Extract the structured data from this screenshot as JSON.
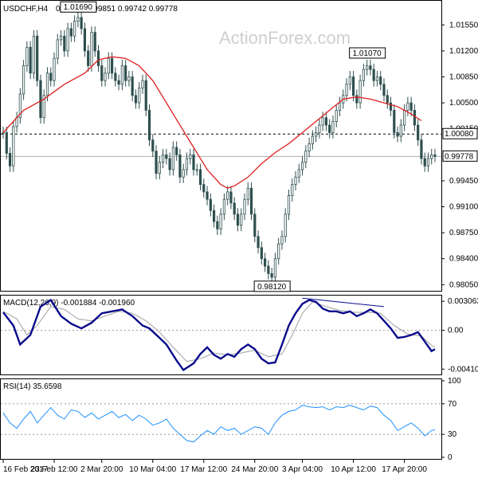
{
  "header": {
    "symbol": "USDCHF,H4",
    "ohlc": "0.99786 0.99851 0.99742 0.99778"
  },
  "watermark": "ActionForex.com",
  "colors": {
    "candles": "#2f4f4f",
    "ma": "#e02020",
    "macd_line": "#0a0a8c",
    "signal_line": "#a0a0a0",
    "rsi_line": "#1e90ff",
    "level": "#000000",
    "divergence": "#0a0a8c"
  },
  "chart_data": [
    {
      "type": "candlestick",
      "name": "price",
      "y_ticks": [
        "1.01550",
        "1.01200",
        "1.00850",
        "1.00500",
        "1.00150",
        "0.99450",
        "0.99100",
        "0.98750",
        "0.98400",
        "0.98050"
      ],
      "ylim": [
        0.98,
        1.018
      ],
      "horizontal_level": {
        "value": 1.0008,
        "label": "1.00080"
      },
      "last_price": {
        "value": 0.99778,
        "label": "0.99778"
      },
      "annotations": [
        {
          "label": "1.01690",
          "value": 1.0169,
          "x": 22
        },
        {
          "label": "1.01070",
          "value": 1.0107,
          "x": 107
        },
        {
          "label": "0.98120",
          "value": 0.9812,
          "x": 79
        }
      ],
      "moving_average_path": [
        [
          0,
          1.001
        ],
        [
          6,
          1.004
        ],
        [
          12,
          1.0055
        ],
        [
          18,
          1.0075
        ],
        [
          24,
          1.009
        ],
        [
          28,
          1.0108
        ],
        [
          32,
          1.0112
        ],
        [
          36,
          1.011
        ],
        [
          40,
          1.01
        ],
        [
          44,
          1.008
        ],
        [
          48,
          1.005
        ],
        [
          52,
          1.002
        ],
        [
          56,
          0.999
        ],
        [
          60,
          0.996
        ],
        [
          62,
          0.995
        ],
        [
          64,
          0.994
        ],
        [
          66,
          0.9935
        ],
        [
          68,
          0.9938
        ],
        [
          72,
          0.995
        ],
        [
          76,
          0.9968
        ],
        [
          80,
          0.9983
        ],
        [
          84,
          0.9995
        ],
        [
          88,
          1.001
        ],
        [
          92,
          1.0025
        ],
        [
          96,
          1.004
        ],
        [
          100,
          1.0055
        ],
        [
          104,
          1.0058
        ],
        [
          108,
          1.0055
        ],
        [
          112,
          1.005
        ],
        [
          116,
          1.0045
        ],
        [
          120,
          1.0035
        ],
        [
          123,
          1.0026
        ]
      ],
      "close_path": [
        [
          0,
          1.001
        ],
        [
          1,
          0.9982
        ],
        [
          2,
          0.9965
        ],
        [
          3,
          1.0018
        ],
        [
          4,
          1.003
        ],
        [
          5,
          1.0062
        ],
        [
          6,
          1.01
        ],
        [
          7,
          1.0125
        ],
        [
          8,
          1.009
        ],
        [
          9,
          1.014
        ],
        [
          10,
          1.008
        ],
        [
          11,
          1.003
        ],
        [
          12,
          1.006
        ],
        [
          13,
          1.009
        ],
        [
          14,
          1.008
        ],
        [
          15,
          1.011
        ],
        [
          16,
          1.0135
        ],
        [
          17,
          1.014
        ],
        [
          18,
          1.012
        ],
        [
          19,
          1.015
        ],
        [
          20,
          1.014
        ],
        [
          21,
          1.016
        ],
        [
          22,
          1.0165
        ],
        [
          23,
          1.015
        ],
        [
          24,
          1.012
        ],
        [
          25,
          1.01
        ],
        [
          26,
          1.0145
        ],
        [
          27,
          1.012
        ],
        [
          28,
          1.01
        ],
        [
          29,
          1.008
        ],
        [
          30,
          1.009
        ],
        [
          31,
          1.011
        ],
        [
          32,
          1.009
        ],
        [
          33,
          1.008
        ],
        [
          34,
          1.0075
        ],
        [
          35,
          1.01
        ],
        [
          36,
          1.008
        ],
        [
          37,
          1.0085
        ],
        [
          38,
          1.006
        ],
        [
          39,
          1.005
        ],
        [
          40,
          1.007
        ],
        [
          41,
          1.008
        ],
        [
          42,
          1.004
        ],
        [
          43,
          1.0
        ],
        [
          44,
          0.9985
        ],
        [
          45,
          0.9955
        ],
        [
          46,
          0.997
        ],
        [
          47,
          0.998
        ],
        [
          48,
          0.9975
        ],
        [
          49,
          0.996
        ],
        [
          50,
          0.999
        ],
        [
          51,
          0.998
        ],
        [
          52,
          0.995
        ],
        [
          53,
          0.996
        ],
        [
          54,
          0.9975
        ],
        [
          55,
          0.998
        ],
        [
          56,
          0.996
        ],
        [
          57,
          0.996
        ],
        [
          58,
          0.994
        ],
        [
          59,
          0.993
        ],
        [
          60,
          0.992
        ],
        [
          61,
          0.9905
        ],
        [
          62,
          0.989
        ],
        [
          63,
          0.988
        ],
        [
          64,
          0.99
        ],
        [
          65,
          0.992
        ],
        [
          66,
          0.993
        ],
        [
          67,
          0.9915
        ],
        [
          68,
          0.99
        ],
        [
          69,
          0.9885
        ],
        [
          70,
          0.99
        ],
        [
          71,
          0.992
        ],
        [
          72,
          0.9935
        ],
        [
          73,
          0.99
        ],
        [
          74,
          0.987
        ],
        [
          75,
          0.9855
        ],
        [
          76,
          0.984
        ],
        [
          77,
          0.983
        ],
        [
          78,
          0.982
        ],
        [
          79,
          0.9815
        ],
        [
          80,
          0.984
        ],
        [
          81,
          0.986
        ],
        [
          82,
          0.987
        ],
        [
          83,
          0.99
        ],
        [
          84,
          0.9925
        ],
        [
          85,
          0.994
        ],
        [
          86,
          0.995
        ],
        [
          87,
          0.996
        ],
        [
          88,
          0.997
        ],
        [
          89,
          0.9985
        ],
        [
          90,
          0.9995
        ],
        [
          91,
          1.0005
        ],
        [
          92,
          1.001
        ],
        [
          93,
          1.002
        ],
        [
          94,
          1.003
        ],
        [
          95,
          1.002
        ],
        [
          96,
          1.001
        ],
        [
          97,
          1.0025
        ],
        [
          98,
          1.004
        ],
        [
          99,
          1.005
        ],
        [
          100,
          1.006
        ],
        [
          101,
          1.0075
        ],
        [
          102,
          1.0085
        ],
        [
          103,
          1.006
        ],
        [
          104,
          1.005
        ],
        [
          105,
          1.008
        ],
        [
          106,
          1.0095
        ],
        [
          107,
          1.01
        ],
        [
          108,
          1.0095
        ],
        [
          109,
          1.008
        ],
        [
          110,
          1.0085
        ],
        [
          111,
          1.0075
        ],
        [
          112,
          1.006
        ],
        [
          113,
          1.005
        ],
        [
          114,
          1.004
        ],
        [
          115,
          1.001
        ],
        [
          116,
          1.0005
        ],
        [
          117,
          1.002
        ],
        [
          118,
          1.004
        ],
        [
          119,
          1.005
        ],
        [
          120,
          1.004
        ],
        [
          121,
          1.002
        ],
        [
          122,
          1.0
        ],
        [
          123,
          0.9975
        ],
        [
          124,
          0.9965
        ],
        [
          125,
          0.9975
        ],
        [
          126,
          0.998
        ],
        [
          127,
          0.9978
        ]
      ]
    },
    {
      "type": "line",
      "name": "MACD",
      "label": "MACD(12,26,9) -0.001884 -0.001960",
      "y_ticks": [
        "0.003063",
        "0.00",
        "-0.004104"
      ],
      "ylim": [
        -0.0045,
        0.0035
      ],
      "zero_line": 0,
      "macd": [
        [
          0,
          0.0019
        ],
        [
          3,
          0.0005
        ],
        [
          5,
          -0.0015
        ],
        [
          8,
          -0.0005
        ],
        [
          11,
          0.0025
        ],
        [
          14,
          0.0032
        ],
        [
          17,
          0.0015
        ],
        [
          20,
          0.0007
        ],
        [
          23,
          0.0002
        ],
        [
          26,
          0.0008
        ],
        [
          29,
          0.0018
        ],
        [
          32,
          0.002
        ],
        [
          35,
          0.0022
        ],
        [
          38,
          0.0015
        ],
        [
          41,
          0.0005
        ],
        [
          43,
          0.0002
        ],
        [
          46,
          -0.0008
        ],
        [
          48,
          -0.0015
        ],
        [
          51,
          -0.0032
        ],
        [
          53,
          -0.0042
        ],
        [
          56,
          -0.0035
        ],
        [
          58,
          -0.0025
        ],
        [
          60,
          -0.0018
        ],
        [
          62,
          -0.0026
        ],
        [
          64,
          -0.003
        ],
        [
          66,
          -0.0025
        ],
        [
          68,
          -0.0028
        ],
        [
          70,
          -0.002
        ],
        [
          72,
          -0.0015
        ],
        [
          74,
          -0.002
        ],
        [
          76,
          -0.003
        ],
        [
          78,
          -0.0035
        ],
        [
          80,
          -0.0034
        ],
        [
          82,
          -0.0015
        ],
        [
          84,
          0.0005
        ],
        [
          86,
          0.0018
        ],
        [
          88,
          0.0028
        ],
        [
          90,
          0.0032
        ],
        [
          92,
          0.003
        ],
        [
          94,
          0.0023
        ],
        [
          96,
          0.002
        ],
        [
          98,
          0.002
        ],
        [
          100,
          0.0018
        ],
        [
          102,
          0.002
        ],
        [
          104,
          0.0015
        ],
        [
          106,
          0.0018
        ],
        [
          108,
          0.0022
        ],
        [
          110,
          0.0018
        ],
        [
          112,
          0.001
        ],
        [
          114,
          0.0002
        ],
        [
          116,
          -0.0008
        ],
        [
          118,
          -0.0007
        ],
        [
          120,
          -0.0005
        ],
        [
          122,
          -0.0002
        ],
        [
          124,
          -0.0012
        ],
        [
          126,
          -0.0022
        ],
        [
          127,
          -0.002
        ]
      ],
      "signal": [
        [
          0,
          0.002
        ],
        [
          4,
          0.0012
        ],
        [
          7,
          -0.0005
        ],
        [
          10,
          0.0005
        ],
        [
          14,
          0.0025
        ],
        [
          18,
          0.0022
        ],
        [
          22,
          0.0012
        ],
        [
          26,
          0.001
        ],
        [
          30,
          0.0015
        ],
        [
          34,
          0.002
        ],
        [
          38,
          0.0018
        ],
        [
          42,
          0.001
        ],
        [
          46,
          -0.0002
        ],
        [
          50,
          -0.0018
        ],
        [
          54,
          -0.0033
        ],
        [
          58,
          -0.003
        ],
        [
          62,
          -0.0024
        ],
        [
          66,
          -0.0026
        ],
        [
          70,
          -0.0024
        ],
        [
          74,
          -0.0021
        ],
        [
          78,
          -0.0028
        ],
        [
          82,
          -0.0025
        ],
        [
          85,
          -0.0005
        ],
        [
          88,
          0.0018
        ],
        [
          91,
          0.003
        ],
        [
          95,
          0.0025
        ],
        [
          99,
          0.0021
        ],
        [
          103,
          0.0019
        ],
        [
          107,
          0.0019
        ],
        [
          111,
          0.0018
        ],
        [
          115,
          0.0005
        ],
        [
          119,
          -0.0004
        ],
        [
          123,
          -0.0006
        ],
        [
          126,
          -0.0016
        ],
        [
          127,
          -0.0018
        ]
      ],
      "divergence_line": [
        [
          88,
          0.0034
        ],
        [
          112,
          0.0025
        ]
      ]
    },
    {
      "type": "line",
      "name": "RSI",
      "label": "RSI(14) 35.6598",
      "y_ticks": [
        "100",
        "70",
        "30",
        "0"
      ],
      "ylim": [
        0,
        100
      ],
      "levels": [
        70,
        30
      ],
      "values": [
        [
          0,
          58
        ],
        [
          2,
          45
        ],
        [
          4,
          38
        ],
        [
          6,
          50
        ],
        [
          8,
          60
        ],
        [
          10,
          45
        ],
        [
          12,
          55
        ],
        [
          14,
          65
        ],
        [
          16,
          55
        ],
        [
          18,
          50
        ],
        [
          20,
          62
        ],
        [
          22,
          60
        ],
        [
          24,
          52
        ],
        [
          26,
          58
        ],
        [
          28,
          50
        ],
        [
          30,
          55
        ],
        [
          32,
          60
        ],
        [
          34,
          52
        ],
        [
          36,
          56
        ],
        [
          38,
          48
        ],
        [
          40,
          55
        ],
        [
          42,
          50
        ],
        [
          44,
          42
        ],
        [
          46,
          45
        ],
        [
          48,
          50
        ],
        [
          50,
          38
        ],
        [
          52,
          30
        ],
        [
          54,
          22
        ],
        [
          56,
          20
        ],
        [
          58,
          28
        ],
        [
          60,
          35
        ],
        [
          62,
          30
        ],
        [
          64,
          40
        ],
        [
          66,
          35
        ],
        [
          68,
          38
        ],
        [
          70,
          30
        ],
        [
          72,
          35
        ],
        [
          74,
          40
        ],
        [
          76,
          38
        ],
        [
          78,
          30
        ],
        [
          80,
          45
        ],
        [
          82,
          55
        ],
        [
          84,
          60
        ],
        [
          86,
          62
        ],
        [
          88,
          68
        ],
        [
          90,
          66
        ],
        [
          92,
          65
        ],
        [
          94,
          66
        ],
        [
          96,
          62
        ],
        [
          98,
          66
        ],
        [
          100,
          65
        ],
        [
          102,
          68
        ],
        [
          104,
          65
        ],
        [
          106,
          62
        ],
        [
          108,
          67
        ],
        [
          110,
          65
        ],
        [
          112,
          55
        ],
        [
          114,
          48
        ],
        [
          116,
          35
        ],
        [
          118,
          40
        ],
        [
          120,
          45
        ],
        [
          122,
          38
        ],
        [
          124,
          28
        ],
        [
          126,
          35
        ],
        [
          127,
          36
        ]
      ]
    }
  ],
  "x_ticks": [
    {
      "i": 0,
      "label": "16 Feb 2017"
    },
    {
      "i": 15,
      "label": "23 Feb 12:00"
    },
    {
      "i": 29,
      "label": "2 Mar 20:00"
    },
    {
      "i": 44,
      "label": "10 Mar 04:00"
    },
    {
      "i": 59,
      "label": "17 Mar 12:00"
    },
    {
      "i": 74,
      "label": "24 Mar 20:00"
    },
    {
      "i": 88,
      "label": "3 Apr 04:00"
    },
    {
      "i": 103,
      "label": "10 Apr 12:00"
    },
    {
      "i": 118,
      "label": "17 Apr 20:00"
    }
  ]
}
